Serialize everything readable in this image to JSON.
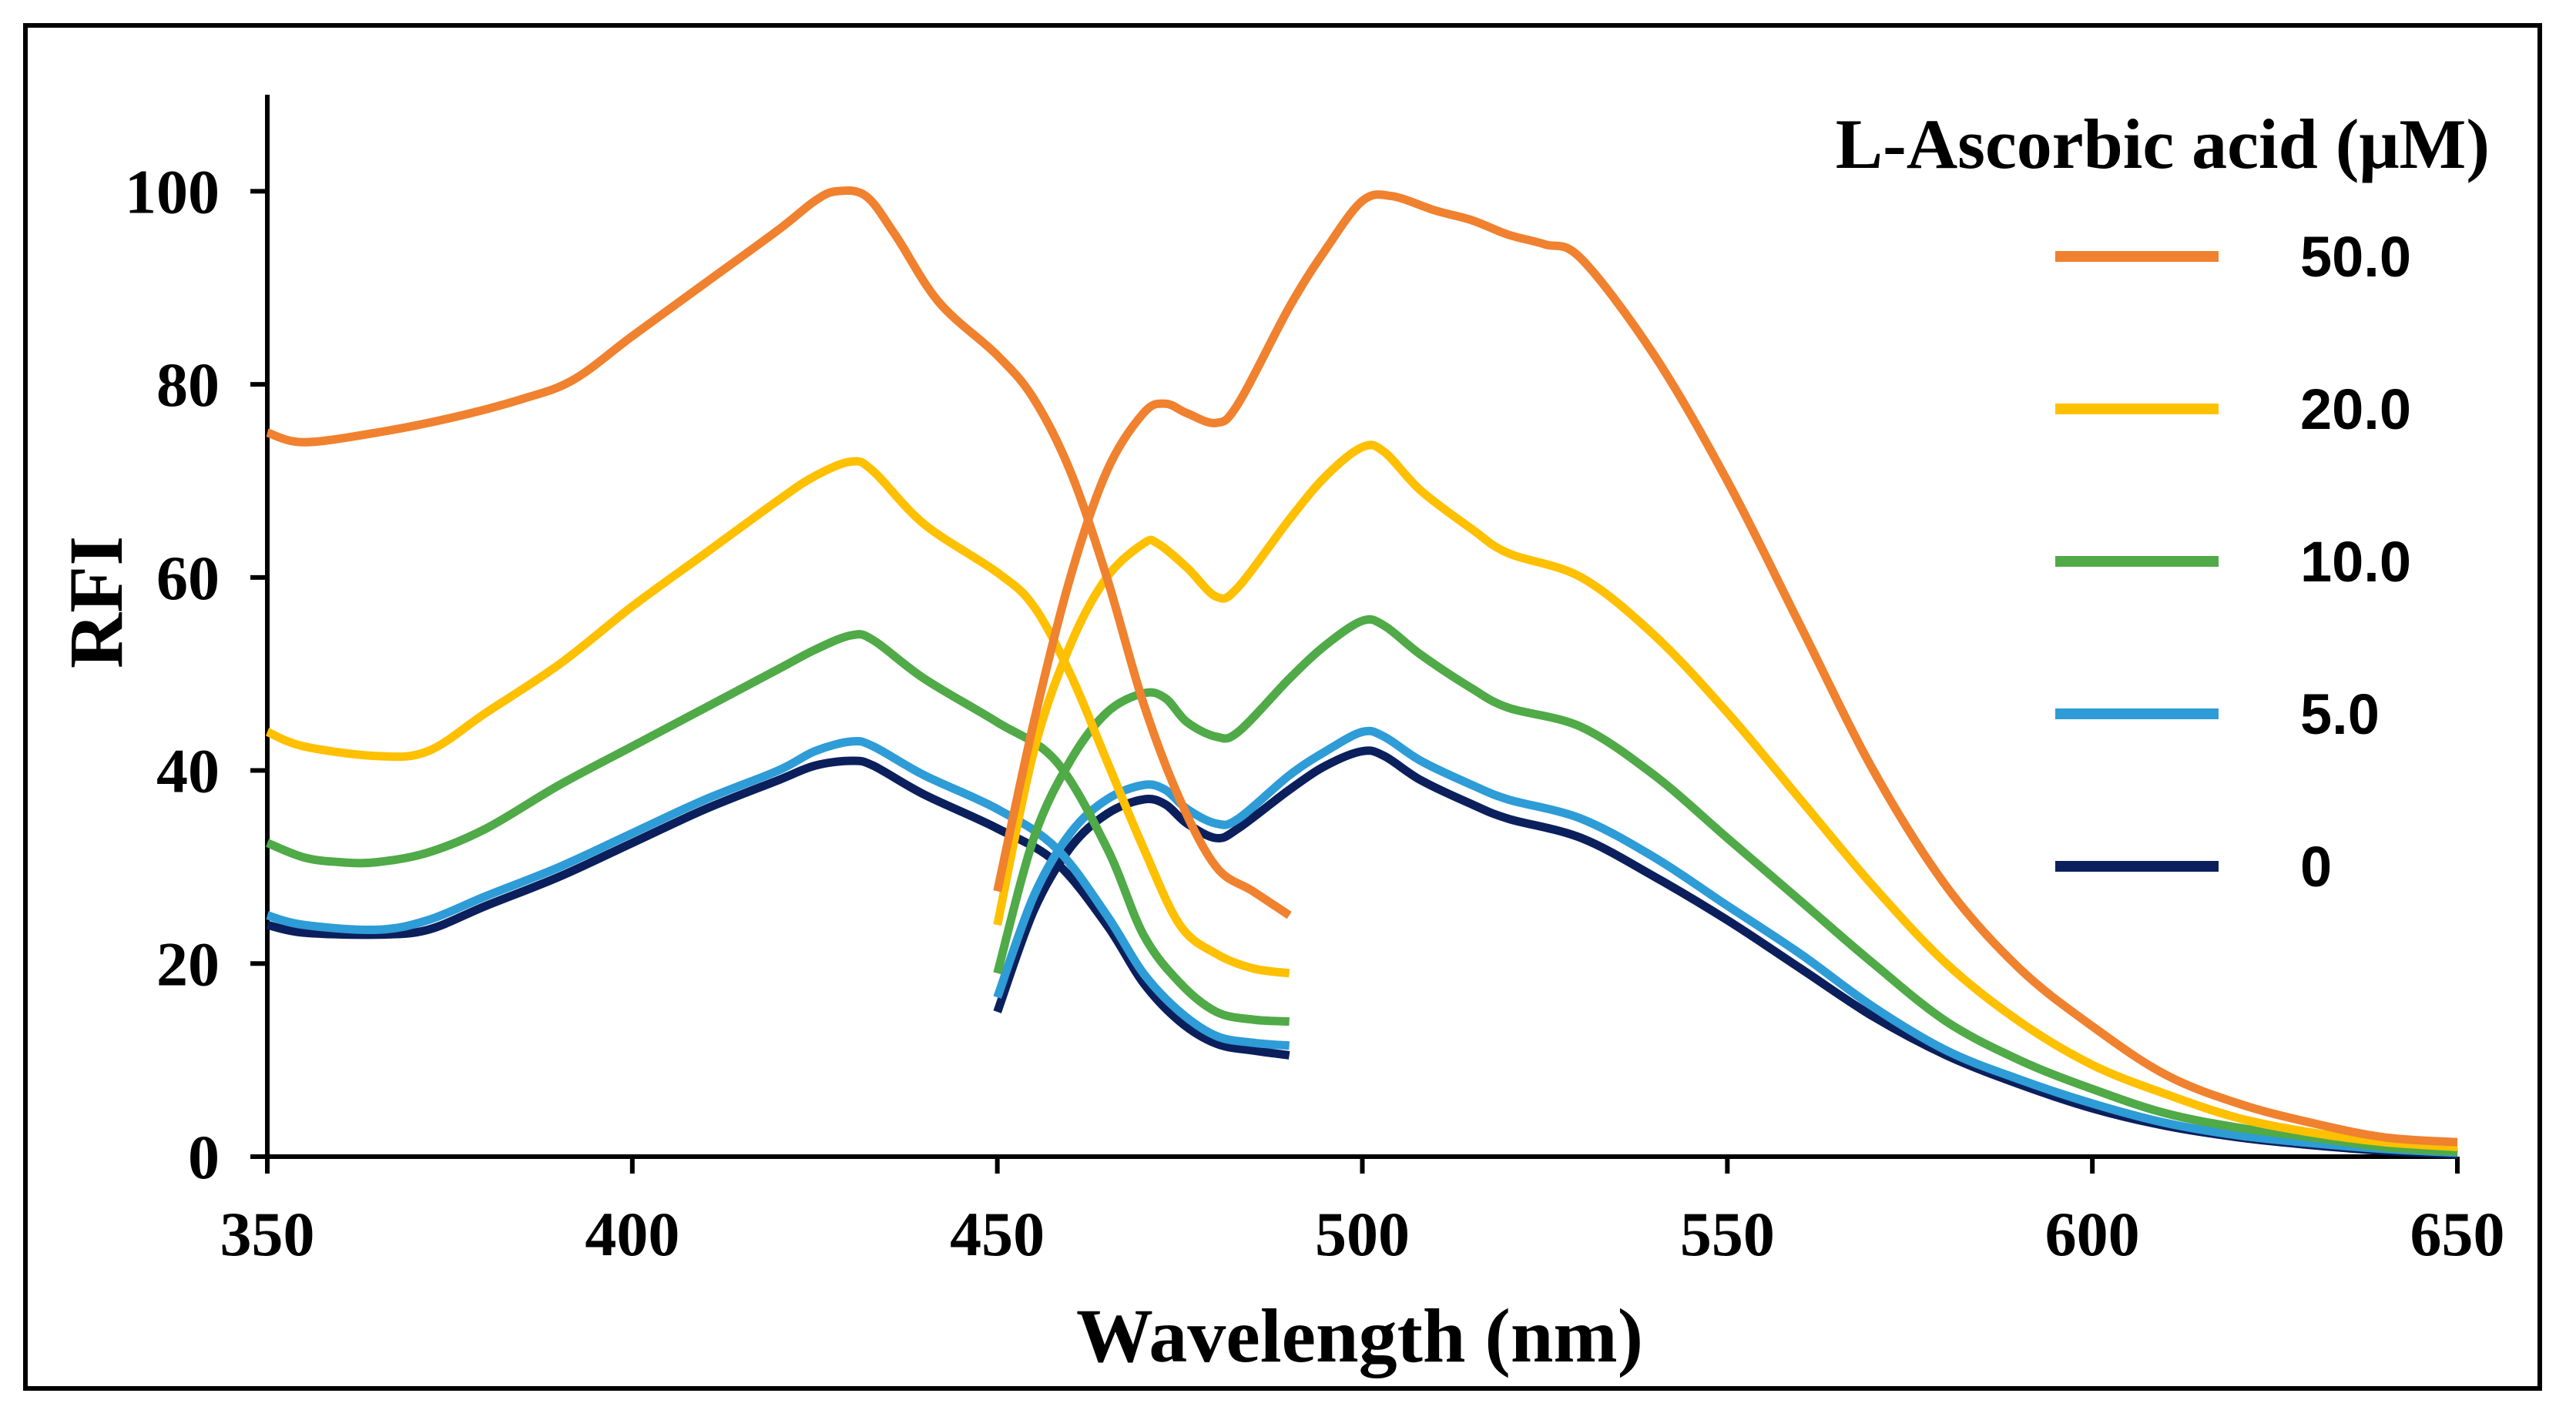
{
  "chart_data": {
    "type": "line",
    "title": "",
    "xlabel": "Wavelength (nm)",
    "ylabel": "RFI",
    "xlim": [
      350,
      650
    ],
    "ylim": [
      0,
      110
    ],
    "x_ticks": [
      350,
      400,
      450,
      500,
      550,
      600,
      650
    ],
    "y_ticks": [
      0,
      20,
      40,
      60,
      80,
      100
    ],
    "legend_title": "L-Ascorbic acid (μM)",
    "legend_position": "top-right",
    "grid": false,
    "series": [
      {
        "name": "50.0",
        "color": "#F0812F",
        "segments": [
          [
            [
              350,
              75
            ],
            [
              355,
              74
            ],
            [
              365,
              75
            ],
            [
              375,
              76.5
            ],
            [
              385,
              78.5
            ],
            [
              392,
              80.5
            ],
            [
              400,
              85
            ],
            [
              410,
              90.5
            ],
            [
              420,
              96
            ],
            [
              425,
              99
            ],
            [
              428,
              100
            ],
            [
              432,
              99.5
            ],
            [
              436,
              95.5
            ],
            [
              442,
              88.5
            ],
            [
              450,
              83
            ],
            [
              455,
              78.5
            ],
            [
              460,
              71
            ],
            [
              465,
              60
            ],
            [
              470,
              47
            ],
            [
              475,
              37
            ],
            [
              480,
              30
            ],
            [
              485,
              27.5
            ],
            [
              490,
              25
            ]
          ],
          [
            [
              450,
              27.5
            ],
            [
              455,
              45
            ],
            [
              460,
              60
            ],
            [
              465,
              71
            ],
            [
              470,
              77
            ],
            [
              473,
              78
            ],
            [
              476,
              77
            ],
            [
              480,
              76
            ],
            [
              483,
              78
            ],
            [
              490,
              88
            ],
            [
              495,
              94
            ],
            [
              500,
              99
            ],
            [
              504,
              99.5
            ],
            [
              510,
              98
            ],
            [
              515,
              97
            ],
            [
              520,
              95.5
            ],
            [
              525,
              94.5
            ],
            [
              530,
              93
            ],
            [
              540,
              83
            ],
            [
              550,
              70
            ],
            [
              560,
              55
            ],
            [
              570,
              40
            ],
            [
              580,
              28
            ],
            [
              590,
              19.5
            ],
            [
              600,
              13.5
            ],
            [
              610,
              8.5
            ],
            [
              620,
              5.5
            ],
            [
              630,
              3.5
            ],
            [
              640,
              2
            ],
            [
              650,
              1.5
            ]
          ]
        ]
      },
      {
        "name": "20.0",
        "color": "#FFC000",
        "segments": [
          [
            [
              350,
              44
            ],
            [
              355,
              42.5
            ],
            [
              365,
              41.5
            ],
            [
              372,
              42
            ],
            [
              380,
              46
            ],
            [
              390,
              51
            ],
            [
              400,
              57
            ],
            [
              410,
              62.5
            ],
            [
              420,
              68
            ],
            [
              425,
              70.5
            ],
            [
              430,
              72
            ],
            [
              433,
              71
            ],
            [
              440,
              65.5
            ],
            [
              450,
              60.5
            ],
            [
              455,
              57
            ],
            [
              460,
              50
            ],
            [
              465,
              41
            ],
            [
              470,
              32
            ],
            [
              475,
              24
            ],
            [
              480,
              21
            ],
            [
              485,
              19.5
            ],
            [
              490,
              19
            ]
          ],
          [
            [
              450,
              24
            ],
            [
              455,
              42
            ],
            [
              460,
              53
            ],
            [
              465,
              60
            ],
            [
              470,
              63.5
            ],
            [
              472,
              63.5
            ],
            [
              476,
              61
            ],
            [
              480,
              58
            ],
            [
              483,
              59
            ],
            [
              490,
              66
            ],
            [
              495,
              70.5
            ],
            [
              500,
              73.5
            ],
            [
              503,
              73
            ],
            [
              508,
              69
            ],
            [
              515,
              65
            ],
            [
              520,
              62.5
            ],
            [
              530,
              60
            ],
            [
              540,
              54
            ],
            [
              550,
              46
            ],
            [
              560,
              37
            ],
            [
              570,
              28
            ],
            [
              580,
              20
            ],
            [
              590,
              14
            ],
            [
              600,
              9.5
            ],
            [
              610,
              6.5
            ],
            [
              620,
              4
            ],
            [
              630,
              2.5
            ],
            [
              640,
              1.5
            ],
            [
              650,
              1
            ]
          ]
        ]
      },
      {
        "name": "10.0",
        "color": "#4FAA47",
        "segments": [
          [
            [
              350,
              32.5
            ],
            [
              355,
              31
            ],
            [
              360,
              30.5
            ],
            [
              365,
              30.5
            ],
            [
              372,
              31.5
            ],
            [
              380,
              34
            ],
            [
              390,
              38.5
            ],
            [
              400,
              42.5
            ],
            [
              410,
              46.5
            ],
            [
              420,
              50.5
            ],
            [
              425,
              52.5
            ],
            [
              430,
              54
            ],
            [
              433,
              53.5
            ],
            [
              440,
              49.5
            ],
            [
              450,
              45
            ],
            [
              458,
              41
            ],
            [
              465,
              32
            ],
            [
              470,
              23
            ],
            [
              475,
              18
            ],
            [
              480,
              15
            ],
            [
              485,
              14.2
            ],
            [
              490,
              14
            ]
          ],
          [
            [
              450,
              19
            ],
            [
              455,
              33
            ],
            [
              460,
              41
            ],
            [
              465,
              46
            ],
            [
              470,
              48
            ],
            [
              473,
              47.5
            ],
            [
              476,
              45
            ],
            [
              480,
              43.5
            ],
            [
              483,
              44
            ],
            [
              490,
              49.5
            ],
            [
              495,
              53
            ],
            [
              500,
              55.5
            ],
            [
              503,
              55
            ],
            [
              508,
              52
            ],
            [
              515,
              48.5
            ],
            [
              520,
              46.5
            ],
            [
              530,
              44.5
            ],
            [
              540,
              39.5
            ],
            [
              550,
              33
            ],
            [
              560,
              26.5
            ],
            [
              570,
              20
            ],
            [
              580,
              14
            ],
            [
              590,
              10
            ],
            [
              600,
              7
            ],
            [
              610,
              4.5
            ],
            [
              620,
              3
            ],
            [
              630,
              2
            ],
            [
              640,
              1
            ],
            [
              650,
              0.5
            ]
          ]
        ]
      },
      {
        "name": "5.0",
        "color": "#2E9CD6",
        "segments": [
          [
            [
              350,
              25
            ],
            [
              355,
              24
            ],
            [
              365,
              23.5
            ],
            [
              372,
              24.5
            ],
            [
              380,
              27
            ],
            [
              390,
              30
            ],
            [
              400,
              33.5
            ],
            [
              410,
              37
            ],
            [
              420,
              40
            ],
            [
              425,
              42
            ],
            [
              430,
              43
            ],
            [
              433,
              42.5
            ],
            [
              440,
              39.5
            ],
            [
              450,
              36
            ],
            [
              458,
              32
            ],
            [
              465,
              25
            ],
            [
              470,
              19
            ],
            [
              475,
              15
            ],
            [
              480,
              12.5
            ],
            [
              485,
              11.8
            ],
            [
              490,
              11.5
            ]
          ],
          [
            [
              450,
              16.5
            ],
            [
              455,
              27
            ],
            [
              460,
              33.5
            ],
            [
              465,
              37
            ],
            [
              470,
              38.5
            ],
            [
              473,
              38
            ],
            [
              476,
              36
            ],
            [
              480,
              34.5
            ],
            [
              483,
              35
            ],
            [
              490,
              39.5
            ],
            [
              495,
              42
            ],
            [
              500,
              44
            ],
            [
              503,
              43.5
            ],
            [
              508,
              41
            ],
            [
              515,
              38.5
            ],
            [
              520,
              37
            ],
            [
              530,
              35
            ],
            [
              540,
              31
            ],
            [
              550,
              26
            ],
            [
              560,
              21
            ],
            [
              570,
              15.5
            ],
            [
              580,
              11
            ],
            [
              590,
              8
            ],
            [
              600,
              5.5
            ],
            [
              610,
              3.5
            ],
            [
              620,
              2.2
            ],
            [
              630,
              1.4
            ],
            [
              640,
              0.8
            ],
            [
              650,
              0.4
            ]
          ]
        ]
      },
      {
        "name": "0",
        "color": "#0B1F5C",
        "segments": [
          [
            [
              350,
              24
            ],
            [
              355,
              23.2
            ],
            [
              365,
              23
            ],
            [
              372,
              23.5
            ],
            [
              380,
              26
            ],
            [
              390,
              29
            ],
            [
              400,
              32.5
            ],
            [
              410,
              36
            ],
            [
              420,
              39
            ],
            [
              425,
              40.5
            ],
            [
              430,
              41
            ],
            [
              433,
              40.5
            ],
            [
              440,
              37.5
            ],
            [
              450,
              34
            ],
            [
              458,
              30.5
            ],
            [
              465,
              24
            ],
            [
              470,
              18
            ],
            [
              475,
              14
            ],
            [
              480,
              11.7
            ],
            [
              485,
              11
            ],
            [
              490,
              10.5
            ]
          ],
          [
            [
              450,
              15
            ],
            [
              455,
              25.5
            ],
            [
              460,
              32
            ],
            [
              465,
              35.5
            ],
            [
              470,
              37
            ],
            [
              473,
              36.5
            ],
            [
              476,
              34.5
            ],
            [
              480,
              33
            ],
            [
              483,
              34
            ],
            [
              490,
              38
            ],
            [
              495,
              40.5
            ],
            [
              500,
              42
            ],
            [
              503,
              41.5
            ],
            [
              508,
              39
            ],
            [
              515,
              36.5
            ],
            [
              520,
              35
            ],
            [
              530,
              33
            ],
            [
              540,
              29
            ],
            [
              550,
              24.5
            ],
            [
              560,
              19.5
            ],
            [
              570,
              14.5
            ],
            [
              580,
              10.5
            ],
            [
              590,
              7.5
            ],
            [
              600,
              5
            ],
            [
              610,
              3.2
            ],
            [
              620,
              2
            ],
            [
              630,
              1.2
            ],
            [
              640,
              0.6
            ],
            [
              650,
              0.2
            ]
          ]
        ]
      }
    ]
  }
}
